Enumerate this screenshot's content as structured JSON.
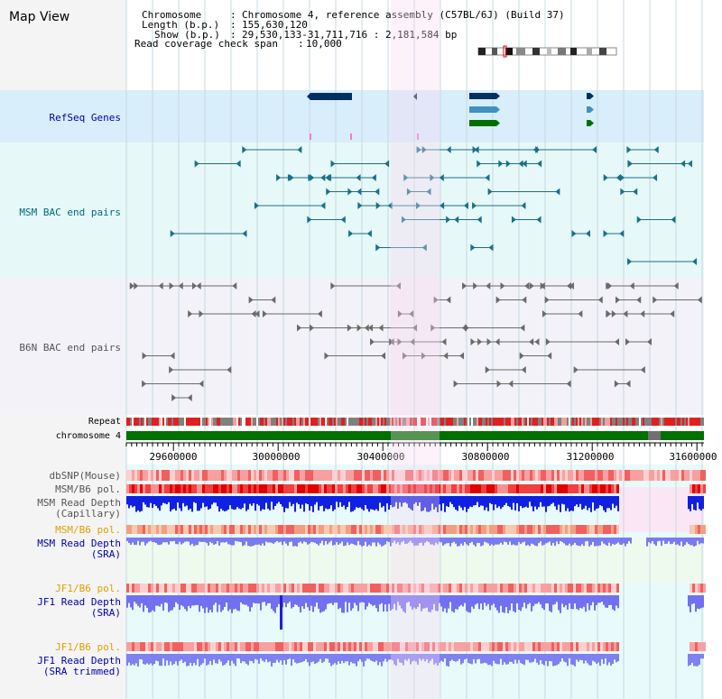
{
  "view_title": "Map View",
  "info": {
    "chromosome_label": "Chromosome",
    "chromosome_value": "Chromosome 4, reference assembly (C57BL/6J) (Build 37)",
    "length_label": "Length (b.p.)",
    "length_value": "155,630,120",
    "show_label": "Show (b.p.)",
    "show_value": "29,530,133-31,711,716 : 2,181,584 bp",
    "coverage_label": "Read coverage check span",
    "coverage_value": "10,000"
  },
  "tracks": {
    "refseq": "RefSeq Genes",
    "msm_bac": "MSM BAC end pairs",
    "b6n_bac": "B6N BAC end pairs",
    "repeat": "Repeat",
    "chromosome": "chromosome 4",
    "dbsnp": "dbSNP(Mouse)",
    "msm_b6_pol_1": "MSM/B6 pol.",
    "msm_depth_cap_1": "MSM Read Depth",
    "msm_depth_cap_2": "(Capillary)",
    "msm_b6_pol_2": "MSM/B6 pol.",
    "msm_depth_sra_1": "MSM Read Depth",
    "msm_depth_sra_2": "(SRA)",
    "jf1_b6_pol_1": "JF1/B6 pol.",
    "jf1_depth_sra_1": "JF1 Read Depth",
    "jf1_depth_sra_2": "(SRA)",
    "jf1_b6_pol_2": "JF1/B6 pol.",
    "jf1_depth_trim_1": "JF1 Read Depth",
    "jf1_depth_trim_2": "(SRA trimmed)"
  },
  "axis": {
    "ticks": [
      "29600000",
      "30000000",
      "30400000",
      "30800000",
      "31200000",
      "31600000"
    ]
  },
  "colors": {
    "refseq_bg": "#d8eefa",
    "bac_bg": "#e6f8f8",
    "b6n_bg": "#f2f2f8",
    "highlight": "#f8d8f0",
    "label_blue": "#0000aa",
    "label_teal": "#006a80",
    "label_orange": "#e0a000",
    "label_gray": "#555555",
    "chrom_green": "#007000"
  }
}
